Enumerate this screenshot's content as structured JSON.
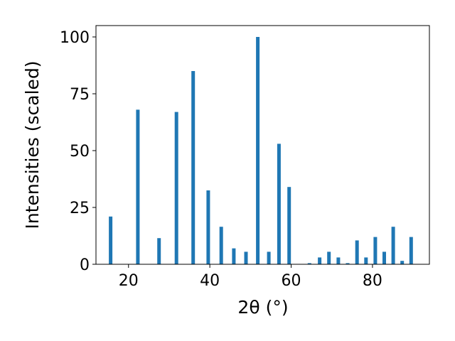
{
  "chart_data": {
    "type": "bar",
    "xlabel": "2θ (°)",
    "ylabel": "Intensities (scaled)",
    "xlim": [
      12,
      94
    ],
    "ylim": [
      0,
      105
    ],
    "x_ticks": [
      20,
      40,
      60,
      80
    ],
    "y_ticks": [
      0,
      25,
      50,
      75,
      100
    ],
    "grid": false,
    "bar_color": "#1f77b4",
    "x": [
      15.6,
      22.3,
      27.5,
      31.8,
      35.9,
      39.6,
      42.8,
      45.9,
      48.9,
      51.8,
      54.5,
      57.0,
      59.5,
      64.5,
      67.0,
      69.3,
      71.6,
      73.9,
      76.2,
      78.4,
      80.7,
      82.9,
      85.1,
      87.3,
      89.5
    ],
    "values": [
      21,
      68,
      11.5,
      67,
      85,
      32.5,
      16.5,
      7,
      5.5,
      100,
      5.5,
      53,
      34,
      0.5,
      3,
      5.5,
      3,
      0.5,
      10.5,
      3,
      12,
      5.5,
      16.5,
      1.5,
      12
    ]
  }
}
